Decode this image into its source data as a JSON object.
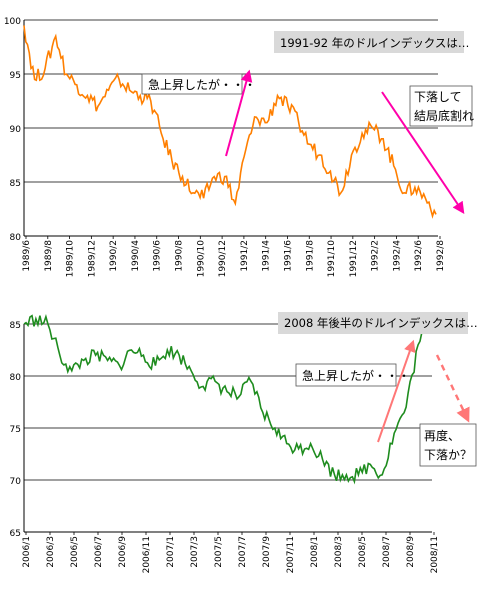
{
  "chart_data": [
    {
      "type": "line",
      "title": "1991-92 年のドルインデックスは…",
      "xlabel": "",
      "ylabel": "",
      "ylim": [
        80,
        100
      ],
      "yticks": [
        80,
        85,
        90,
        95,
        100
      ],
      "grid": "horizontal",
      "line_color": "#ff7f00",
      "x_tick_labels": [
        "1989/6",
        "1989/8",
        "1989/10",
        "1989/12",
        "1990/2",
        "1990/4",
        "1990/6",
        "1990/8",
        "1990/10",
        "1990/12",
        "1991/2",
        "1991/4",
        "1991/6",
        "1991/8",
        "1991/10",
        "1991/12",
        "1992/2",
        "1992/4",
        "1992/6",
        "1992/8"
      ],
      "series": [
        {
          "name": "",
          "x": [
            "1989/6",
            "1989/7",
            "1989/8",
            "1989/9",
            "1989/10",
            "1989/11",
            "1989/12",
            "1990/1",
            "1990/2",
            "1990/3",
            "1990/4",
            "1990/5",
            "1990/6",
            "1990/7",
            "1990/8",
            "1990/9",
            "1990/10",
            "1990/11",
            "1990/12",
            "1991/1",
            "1991/2",
            "1991/3",
            "1991/4",
            "1991/5",
            "1991/6",
            "1991/7",
            "1991/8",
            "1991/9",
            "1991/10",
            "1991/11",
            "1991/12",
            "1992/1",
            "1992/2",
            "1992/3",
            "1992/4",
            "1992/5",
            "1992/6",
            "1992/7",
            "1992/8",
            "1992/9"
          ],
          "values": [
            99.5,
            94.5,
            95.5,
            98.5,
            95.0,
            94.0,
            93.0,
            92.0,
            93.5,
            94.5,
            93.5,
            93.0,
            92.5,
            89.5,
            87.0,
            85.5,
            84.0,
            83.5,
            85.5,
            85.5,
            83.0,
            88.0,
            91.0,
            90.5,
            93.0,
            92.0,
            90.5,
            88.5,
            87.5,
            86.0,
            84.0,
            87.5,
            89.5,
            90.0,
            89.0,
            86.5,
            84.0,
            84.5,
            83.5,
            82.0
          ]
        }
      ],
      "annotations": [
        {
          "text": "急上昇したが・・・",
          "color": "#ff00aa"
        },
        {
          "text_lines": [
            "下落して",
            "結局底割れ"
          ],
          "color": "#ff00aa"
        }
      ]
    },
    {
      "type": "line",
      "title": "2008 年後半のドルインデックスは…",
      "xlabel": "",
      "ylabel": "",
      "ylim": [
        65,
        85
      ],
      "yticks": [
        65,
        70,
        75,
        80,
        85
      ],
      "grid": "horizontal",
      "line_color": "#1e8c1e",
      "x_tick_labels": [
        "2006/1",
        "2006/3",
        "2006/5",
        "2006/7",
        "2006/9",
        "2006/11",
        "2007/1",
        "2007/3",
        "2007/5",
        "2007/7",
        "2007/9",
        "2007/11",
        "2008/1",
        "2008/3",
        "2008/5",
        "2008/7",
        "2008/9",
        "2008/11"
      ],
      "series": [
        {
          "name": "",
          "x": [
            "2006/1",
            "2006/2",
            "2006/3",
            "2006/4",
            "2006/5",
            "2006/6",
            "2006/7",
            "2006/8",
            "2006/9",
            "2006/10",
            "2006/11",
            "2006/12",
            "2007/1",
            "2007/2",
            "2007/3",
            "2007/4",
            "2007/5",
            "2007/6",
            "2007/7",
            "2007/8",
            "2007/9",
            "2007/10",
            "2007/11",
            "2007/12",
            "2008/1",
            "2008/2",
            "2008/3",
            "2008/4",
            "2008/5",
            "2008/6",
            "2008/7",
            "2008/8",
            "2008/9",
            "2008/10",
            "2008/11"
          ],
          "values": [
            85.0,
            85.5,
            85.0,
            82.0,
            80.5,
            81.5,
            82.0,
            81.5,
            81.0,
            82.5,
            82.0,
            81.0,
            82.5,
            82.0,
            80.5,
            79.0,
            79.5,
            78.5,
            78.0,
            79.5,
            76.5,
            75.0,
            73.5,
            73.0,
            73.5,
            72.0,
            70.5,
            70.5,
            70.5,
            71.5,
            70.5,
            74.5,
            77.0,
            83.0,
            85.0
          ]
        }
      ],
      "annotations": [
        {
          "text": "急上昇したが・・・",
          "color": "#ff7777"
        },
        {
          "text_lines": [
            "再度、",
            "下落か？"
          ],
          "color": "#ff7777"
        }
      ]
    }
  ]
}
